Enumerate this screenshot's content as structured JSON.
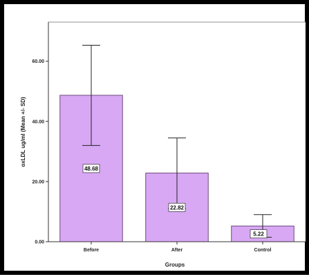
{
  "chart_data": {
    "type": "bar",
    "categories": [
      "Before",
      "After",
      "Control"
    ],
    "values": [
      48.68,
      22.82,
      5.22
    ],
    "error_low": [
      32.0,
      11.0,
      1.5
    ],
    "error_high": [
      65.3,
      34.5,
      9.0
    ],
    "data_labels": [
      "48.68",
      "22.82",
      "5.22"
    ],
    "xlabel": "Groups",
    "ylabel": "oxLDL ug/ml (Mean +/- SD)",
    "ylim": [
      0,
      73
    ],
    "yticks": [
      0,
      20,
      40,
      60
    ],
    "ytick_labels": [
      "0.00",
      "20.00",
      "40.00",
      "60.00"
    ],
    "grid": false,
    "colors": {
      "bar_fill": "#d8a8f4",
      "bar_stroke": "#6a4a7a"
    }
  }
}
